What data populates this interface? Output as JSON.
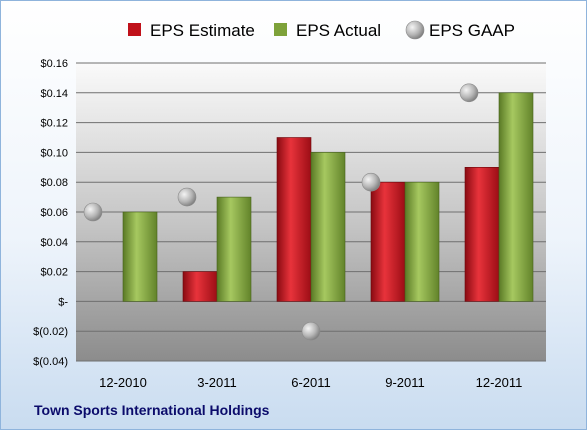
{
  "footer": {
    "company": "Town Sports International Holdings"
  },
  "legend": [
    {
      "label": "EPS Estimate",
      "marker": "square",
      "color": "#c0111a"
    },
    {
      "label": "EPS Actual",
      "marker": "square",
      "color": "#7ea23a"
    },
    {
      "label": "EPS GAAP",
      "marker": "circle",
      "color": "#b9b9b9"
    }
  ],
  "chart_data": {
    "type": "bar",
    "title": "",
    "xlabel": "",
    "ylabel": "",
    "categories": [
      "12-2010",
      "3-2011",
      "6-2011",
      "9-2011",
      "12-2011"
    ],
    "series": [
      {
        "name": "EPS Estimate",
        "type": "bar",
        "color": "#c0111a",
        "values": [
          null,
          0.02,
          0.11,
          0.08,
          0.09
        ]
      },
      {
        "name": "EPS Actual",
        "type": "bar",
        "color": "#7ea23a",
        "values": [
          0.06,
          0.07,
          0.1,
          0.08,
          0.14
        ]
      },
      {
        "name": "EPS GAAP",
        "type": "scatter",
        "color": "#b9b9b9",
        "values": [
          0.06,
          0.07,
          -0.02,
          0.08,
          0.14
        ]
      }
    ],
    "ylim": [
      -0.04,
      0.16
    ],
    "ytick_labels": [
      "$(0.04)",
      "$(0.02)",
      "$-",
      "$0.02",
      "$0.04",
      "$0.06",
      "$0.08",
      "$0.10",
      "$0.12",
      "$0.14",
      "$0.16"
    ],
    "grid": true,
    "legend_position": "top"
  }
}
